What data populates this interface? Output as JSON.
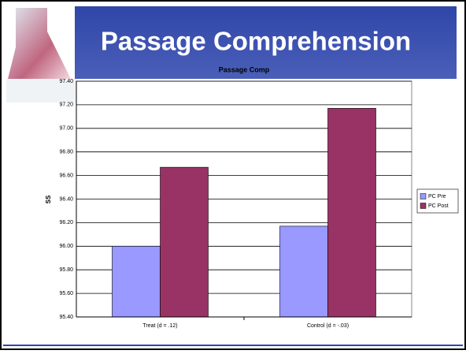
{
  "header": {
    "title": "Passage Comprehension"
  },
  "chart_data": {
    "type": "bar",
    "title": "Passage Comp",
    "y_label": "SS",
    "categories": [
      "Treat (d = .12)",
      "Control (d = -.03)"
    ],
    "series": [
      {
        "name": "PC Pre",
        "color": "#9999ff",
        "values": [
          96.0,
          96.17
        ]
      },
      {
        "name": "PC Post",
        "color": "#993366",
        "values": [
          96.67,
          97.17
        ]
      }
    ],
    "ylim": [
      95.4,
      97.4
    ],
    "yticks": [
      {
        "value": 95.4,
        "label": "95.40"
      },
      {
        "value": 95.6,
        "label": "95.60"
      },
      {
        "value": 95.8,
        "label": "95.80"
      },
      {
        "value": 96.0,
        "label": "96.00"
      },
      {
        "value": 96.2,
        "label": "96.20"
      },
      {
        "value": 96.4,
        "label": "96.40"
      },
      {
        "value": 96.6,
        "label": "96.60"
      },
      {
        "value": 96.8,
        "label": "96.80"
      },
      {
        "value": 97.0,
        "label": "97.00"
      },
      {
        "value": 97.2,
        "label": "97.20"
      },
      {
        "value": 97.4,
        "label": "97.40"
      }
    ],
    "grid": true,
    "legend": "right"
  }
}
